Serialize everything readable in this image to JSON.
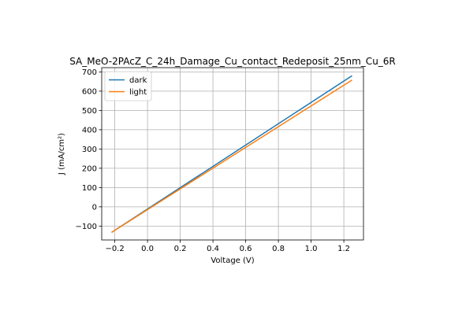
{
  "chart_data": {
    "type": "line",
    "title": "SA_MeO-2PAcZ_C_24h_Damage_Cu_contact_Redeposit_25nm_Cu_6R",
    "xlabel": "Voltage (V)",
    "ylabel": "J (mA/cm²)",
    "xlim": [
      -0.28,
      1.32
    ],
    "ylim": [
      -172,
      722
    ],
    "xticks": [
      -0.2,
      0.0,
      0.2,
      0.4,
      0.6,
      0.8,
      1.0,
      1.2
    ],
    "xtick_labels": [
      "−0.2",
      "0.0",
      "0.2",
      "0.4",
      "0.6",
      "0.8",
      "1.0",
      "1.2"
    ],
    "yticks": [
      -100,
      0,
      100,
      200,
      300,
      400,
      500,
      600,
      700
    ],
    "ytick_labels": [
      "−100",
      "0",
      "100",
      "200",
      "300",
      "400",
      "500",
      "600",
      "700"
    ],
    "grid": true,
    "legend_position": "top-left",
    "series": [
      {
        "name": "dark",
        "color": "#1f77b4",
        "x": [
          -0.22,
          1.25
        ],
        "y": [
          -133,
          680
        ]
      },
      {
        "name": "light",
        "color": "#ff7f0e",
        "x": [
          -0.22,
          1.25
        ],
        "y": [
          -133,
          658
        ]
      }
    ]
  }
}
